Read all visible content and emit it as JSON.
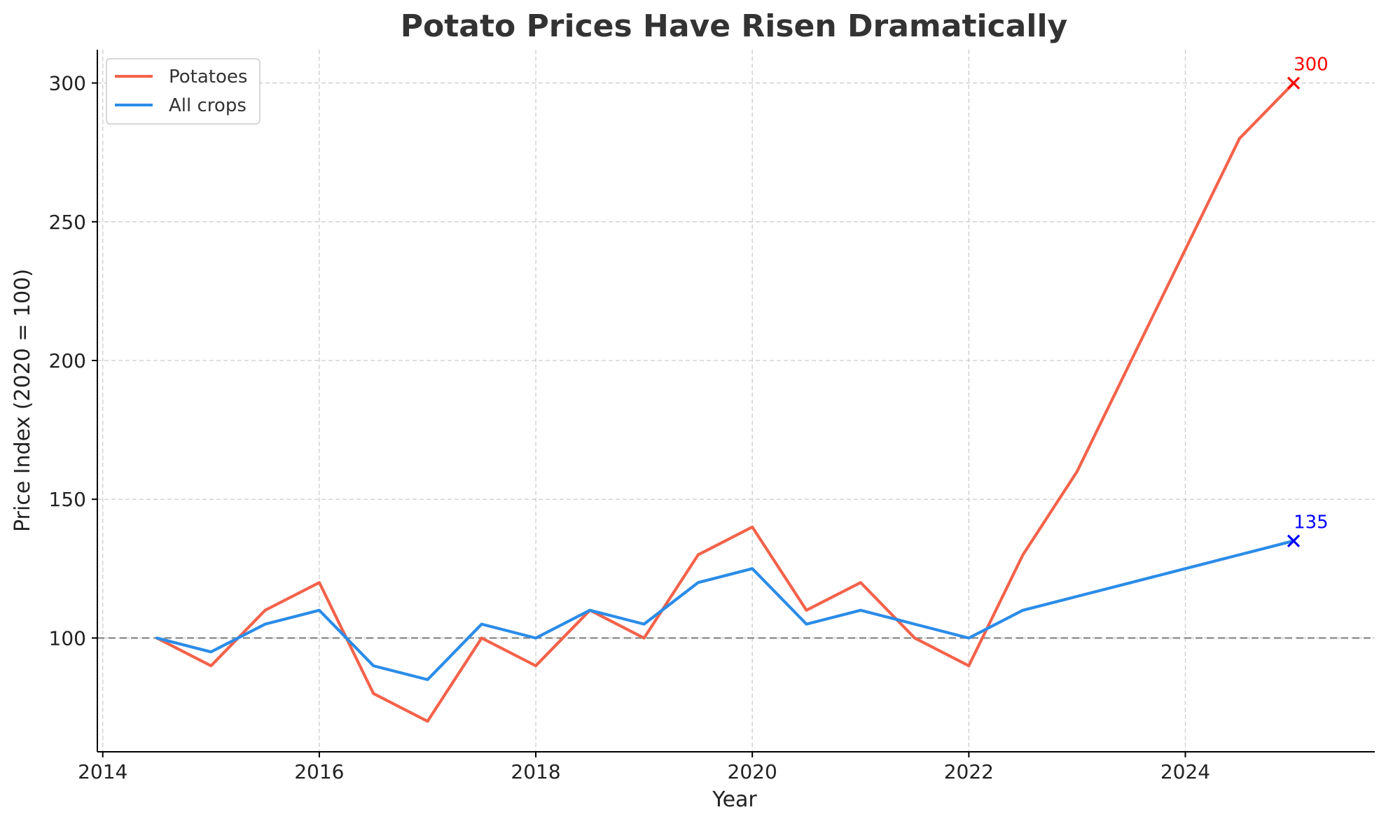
{
  "chart_data": {
    "type": "line",
    "title": "Potato Prices Have Risen Dramatically",
    "xlabel": "Year",
    "ylabel": "Price Index (2020 = 100)",
    "xlim": [
      2013.95,
      2025.75
    ],
    "ylim": [
      59,
      312
    ],
    "xticks": [
      2014,
      2016,
      2018,
      2020,
      2022,
      2024
    ],
    "yticks": [
      100,
      150,
      200,
      250,
      300
    ],
    "grid": true,
    "legend_position": "top-left",
    "reference_line": {
      "y": 100,
      "color": "#808080",
      "style": "dashed"
    },
    "x": [
      2014.5,
      2015,
      2015.5,
      2016,
      2016.5,
      2017,
      2017.5,
      2018,
      2018.5,
      2019,
      2019.5,
      2020,
      2020.5,
      2021,
      2021.5,
      2022,
      2022.5,
      2023,
      2023.5,
      2024,
      2024.5,
      2025
    ],
    "series": [
      {
        "name": "Potatoes",
        "color": "#f4624a",
        "values": [
          100,
          90,
          110,
          120,
          80,
          70,
          100,
          90,
          110,
          100,
          130,
          140,
          110,
          120,
          100,
          90,
          130,
          160,
          200,
          240,
          280,
          300
        ]
      },
      {
        "name": "All crops",
        "color": "#2b8ce8",
        "values": [
          100,
          95,
          105,
          110,
          90,
          85,
          105,
          100,
          110,
          105,
          120,
          125,
          105,
          110,
          105,
          100,
          110,
          115,
          120,
          125,
          130,
          135
        ]
      }
    ],
    "annotations": [
      {
        "x": 2025,
        "y": 300,
        "text": "300",
        "marker": "x",
        "color": "#ff0000"
      },
      {
        "x": 2025,
        "y": 135,
        "text": "135",
        "marker": "x",
        "color": "#0000ff"
      }
    ]
  }
}
